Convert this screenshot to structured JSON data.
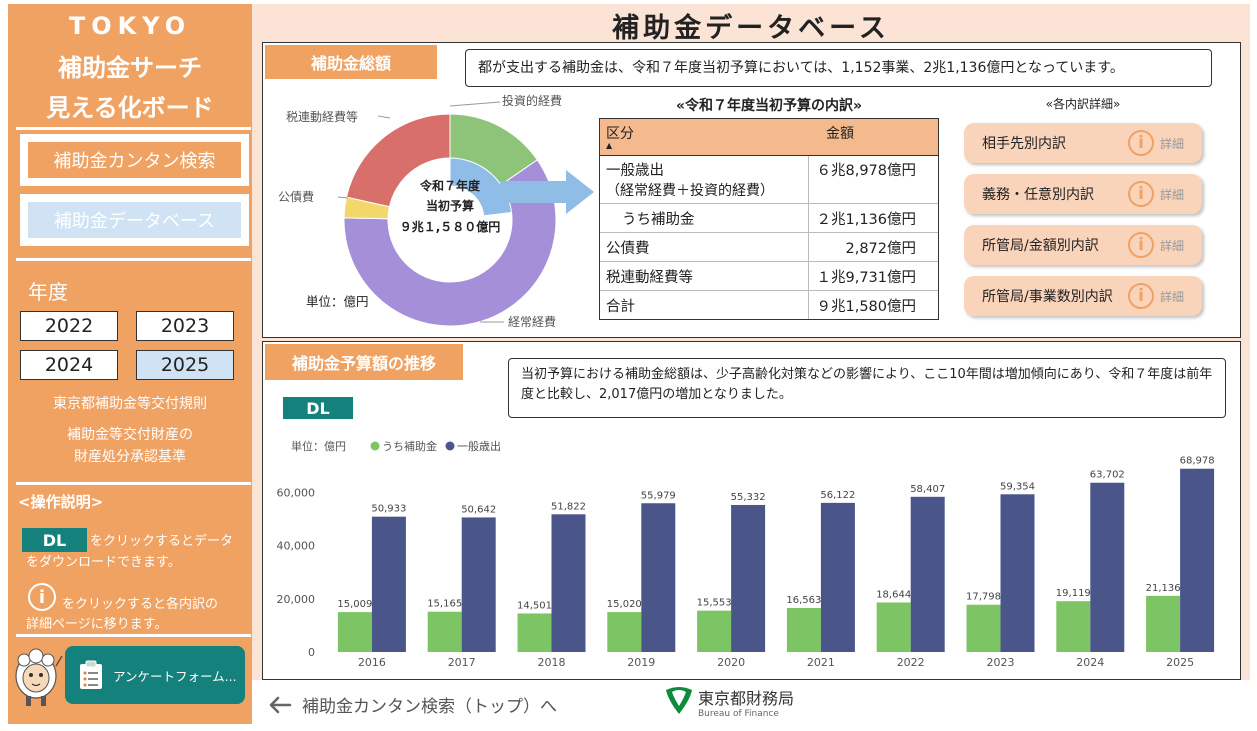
{
  "sidebar": {
    "title_line1": "TOKYO",
    "title_line2": "補助金サーチ",
    "title_line3": "見える化ボード",
    "nav_search": "補助金カンタン検索",
    "nav_database": "補助金データベース",
    "year_label": "年度",
    "years": [
      "2022",
      "2023",
      "2024",
      "2025"
    ],
    "selected_year": "2025",
    "link_rules": "東京都補助金等交付規則",
    "link_property_line1": "補助金等交付財産の",
    "link_property_line2": "財産処分承認基準",
    "instructions_title": "<操作説明>",
    "dl_label": "DL",
    "dl_desc_line1": "をクリックするとデータ",
    "dl_desc_line2": "をダウンロードできます。",
    "info_symbol": "i",
    "info_desc_line1": "をクリックすると各内訳の",
    "info_desc_line2": "詳細ページに移ります。",
    "survey_label": "アンケートフォーム..."
  },
  "header": {
    "title": "補助金データベース"
  },
  "total": {
    "tab_label": "補助金総額",
    "summary": "都が支出する補助金は、令和７年度当初予算においては、1,152事業、2兆1,136億円となっています。",
    "donut": {
      "center_line1": "令和７年度",
      "center_line2": "当初予算",
      "center_line3": "９兆１,５８０億円",
      "unit": "単位：億円",
      "labels": {
        "investment": "投資的経費",
        "tax": "税連動経費等",
        "bond": "公債費",
        "regular": "経常経費"
      }
    },
    "breakdown": {
      "title": "«令和７年度当初予算の内訳»",
      "col_item": "区分",
      "col_amount": "金額",
      "sort_indicator": "▲",
      "rows": [
        {
          "item_line1": "一般歳出",
          "item_line2": "（経常経費＋投資的経費）",
          "amount": "６兆8,978億円"
        },
        {
          "item_line1": "うち補助金",
          "amount": "２兆1,136億円"
        },
        {
          "item_line1": "公債費",
          "amount": "2,872億円"
        },
        {
          "item_line1": "税連動経費等",
          "amount": "１兆9,731億円"
        },
        {
          "item_line1": "合計",
          "amount": "９兆1,580億円"
        }
      ]
    },
    "details": {
      "title": "«各内訳詳細»",
      "detail_label": "詳細",
      "items": [
        "相手先別内訳",
        "義務・任意別内訳",
        "所管局/金額別内訳",
        "所管局/事業数別内訳"
      ]
    }
  },
  "trend": {
    "tab_label": "補助金予算額の推移",
    "summary": "当初予算における補助金総額は、少子高齢化対策などの影響により、ここ10年間は増加傾向にあり、令和７年度は前年度と比較し、2,017億円の増加となりました。",
    "dl_label": "DL",
    "unit": "単位：億円"
  },
  "chart_data": {
    "type": "bar",
    "categories": [
      "2016",
      "2017",
      "2018",
      "2019",
      "2020",
      "2021",
      "2022",
      "2023",
      "2024",
      "2025"
    ],
    "series": [
      {
        "name": "うち補助金",
        "color": "#7dc464",
        "values": [
          15009,
          15165,
          14501,
          15020,
          15553,
          16563,
          18644,
          17798,
          19119,
          21136
        ]
      },
      {
        "name": "一般歳出",
        "color": "#4a5589",
        "values": [
          50933,
          50642,
          51822,
          55979,
          55332,
          56122,
          58407,
          59354,
          63702,
          68978
        ]
      }
    ],
    "ylim": [
      0,
      70000
    ],
    "yticks": [
      "0",
      "20,000",
      "40,000",
      "60,000"
    ],
    "ytick_values": [
      0,
      20000,
      40000,
      60000
    ],
    "grid": false,
    "legend": "top-left"
  },
  "footer": {
    "back_link": "補助金カンタン検索（トップ）へ",
    "org_name": "東京都財務局",
    "org_name_en": "Bureau of Finance"
  }
}
